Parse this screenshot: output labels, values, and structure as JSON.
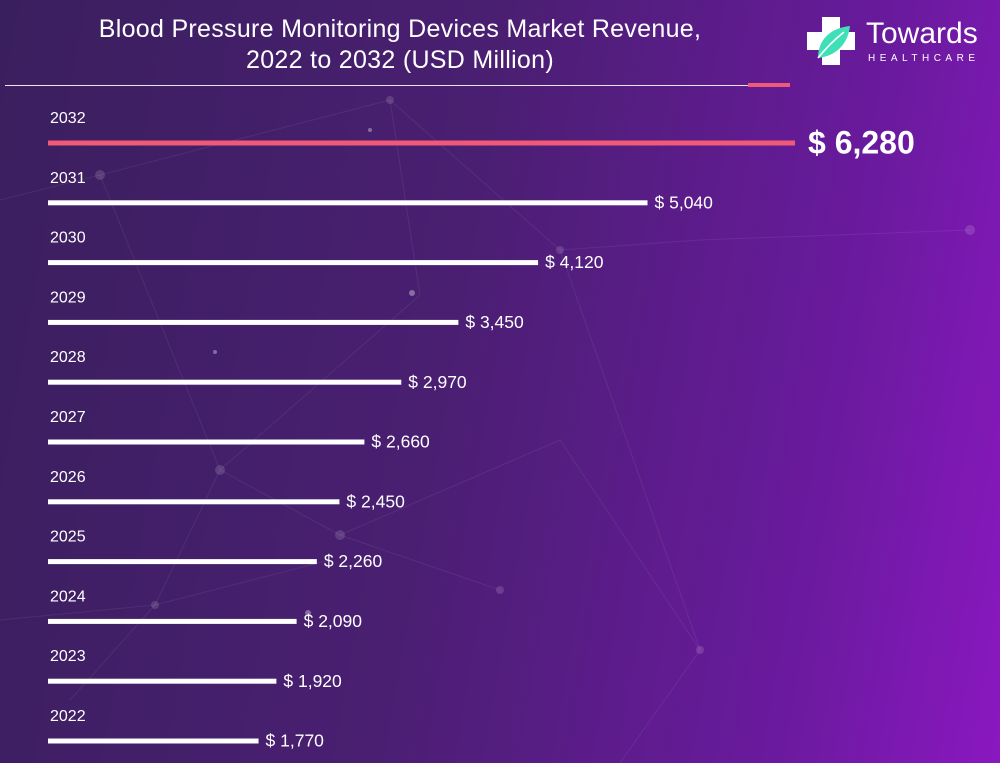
{
  "chart_data": {
    "type": "bar",
    "orientation": "horizontal",
    "title": "Blood Pressure Monitoring Devices Market Revenue, 2022 to 2032 (USD Million)",
    "title_lines": [
      "Blood Pressure Monitoring Devices Market Revenue,",
      "2022 to 2032 (USD Million)"
    ],
    "categories": [
      "2032",
      "2031",
      "2030",
      "2029",
      "2028",
      "2027",
      "2026",
      "2025",
      "2024",
      "2023",
      "2022"
    ],
    "values": [
      6280,
      5040,
      4120,
      3450,
      2970,
      2660,
      2450,
      2260,
      2090,
      1920,
      1770
    ],
    "value_labels": [
      "$ 6,280",
      "$ 5,040",
      "$ 4,120",
      "$ 3,450",
      "$ 2,970",
      "$ 2,660",
      "$ 2,450",
      "$ 2,260",
      "$ 2,090",
      "$ 1,920",
      "$ 1,770"
    ],
    "highlight_category": "2032",
    "colors": {
      "bar": "#ffffff",
      "highlight": "#f05a78",
      "label": "#ffffff"
    },
    "xlabel": "",
    "ylabel": "",
    "grid": false,
    "legend": "none"
  },
  "logo": {
    "name": "Towards",
    "tagline": "HEALTHCARE",
    "colors": {
      "cross": "#ffffff",
      "leaf": "#3fe0b8"
    }
  },
  "background": {
    "from": "#3a1f5e",
    "to": "#8a18c0"
  }
}
